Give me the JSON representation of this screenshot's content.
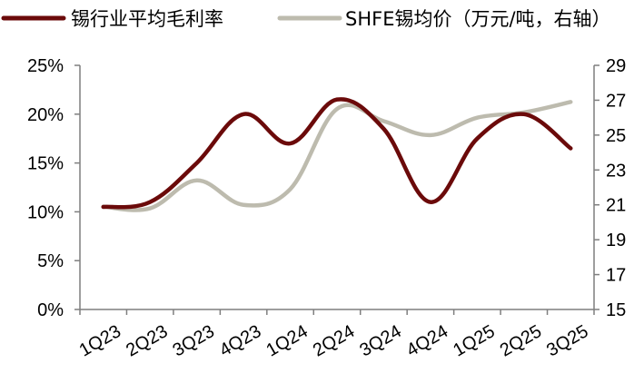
{
  "colors": {
    "margin": "#6b0a0a",
    "price": "#bdbbae",
    "axis": "#7f7f7f",
    "text": "#000000"
  },
  "chart_data": {
    "type": "line",
    "title": "",
    "xlabel": "",
    "ylabel": "",
    "y2label": "",
    "categories": [
      "1Q23",
      "2Q23",
      "3Q23",
      "4Q23",
      "1Q24",
      "2Q24",
      "3Q24",
      "4Q24",
      "1Q25",
      "2Q25",
      "3Q25"
    ],
    "series": [
      {
        "name": "锡行业平均毛利率",
        "axis": "left",
        "color": "#6b0a0a",
        "values": [
          10.5,
          11.0,
          15.0,
          20.0,
          17.0,
          21.5,
          18.5,
          11.0,
          17.5,
          20.0,
          16.5
        ]
      },
      {
        "name": "SHFE锡均价（万元/吨，右轴）",
        "axis": "right",
        "color": "#bdbbae",
        "values": [
          20.9,
          20.8,
          22.4,
          21.0,
          21.9,
          26.5,
          25.8,
          25.0,
          26.0,
          26.3,
          26.9
        ]
      }
    ],
    "ylim": [
      0,
      25
    ],
    "y_ticks": [
      "0%",
      "5%",
      "10%",
      "15%",
      "20%",
      "25%"
    ],
    "y_tick_values": [
      0,
      5,
      10,
      15,
      20,
      25
    ],
    "y2lim": [
      15,
      29
    ],
    "y2_ticks": [
      "15",
      "17",
      "19",
      "21",
      "23",
      "25",
      "27",
      "29"
    ],
    "y2_tick_values": [
      15,
      17,
      19,
      21,
      23,
      25,
      27,
      29
    ],
    "grid": false,
    "legend_position": "top-left"
  }
}
